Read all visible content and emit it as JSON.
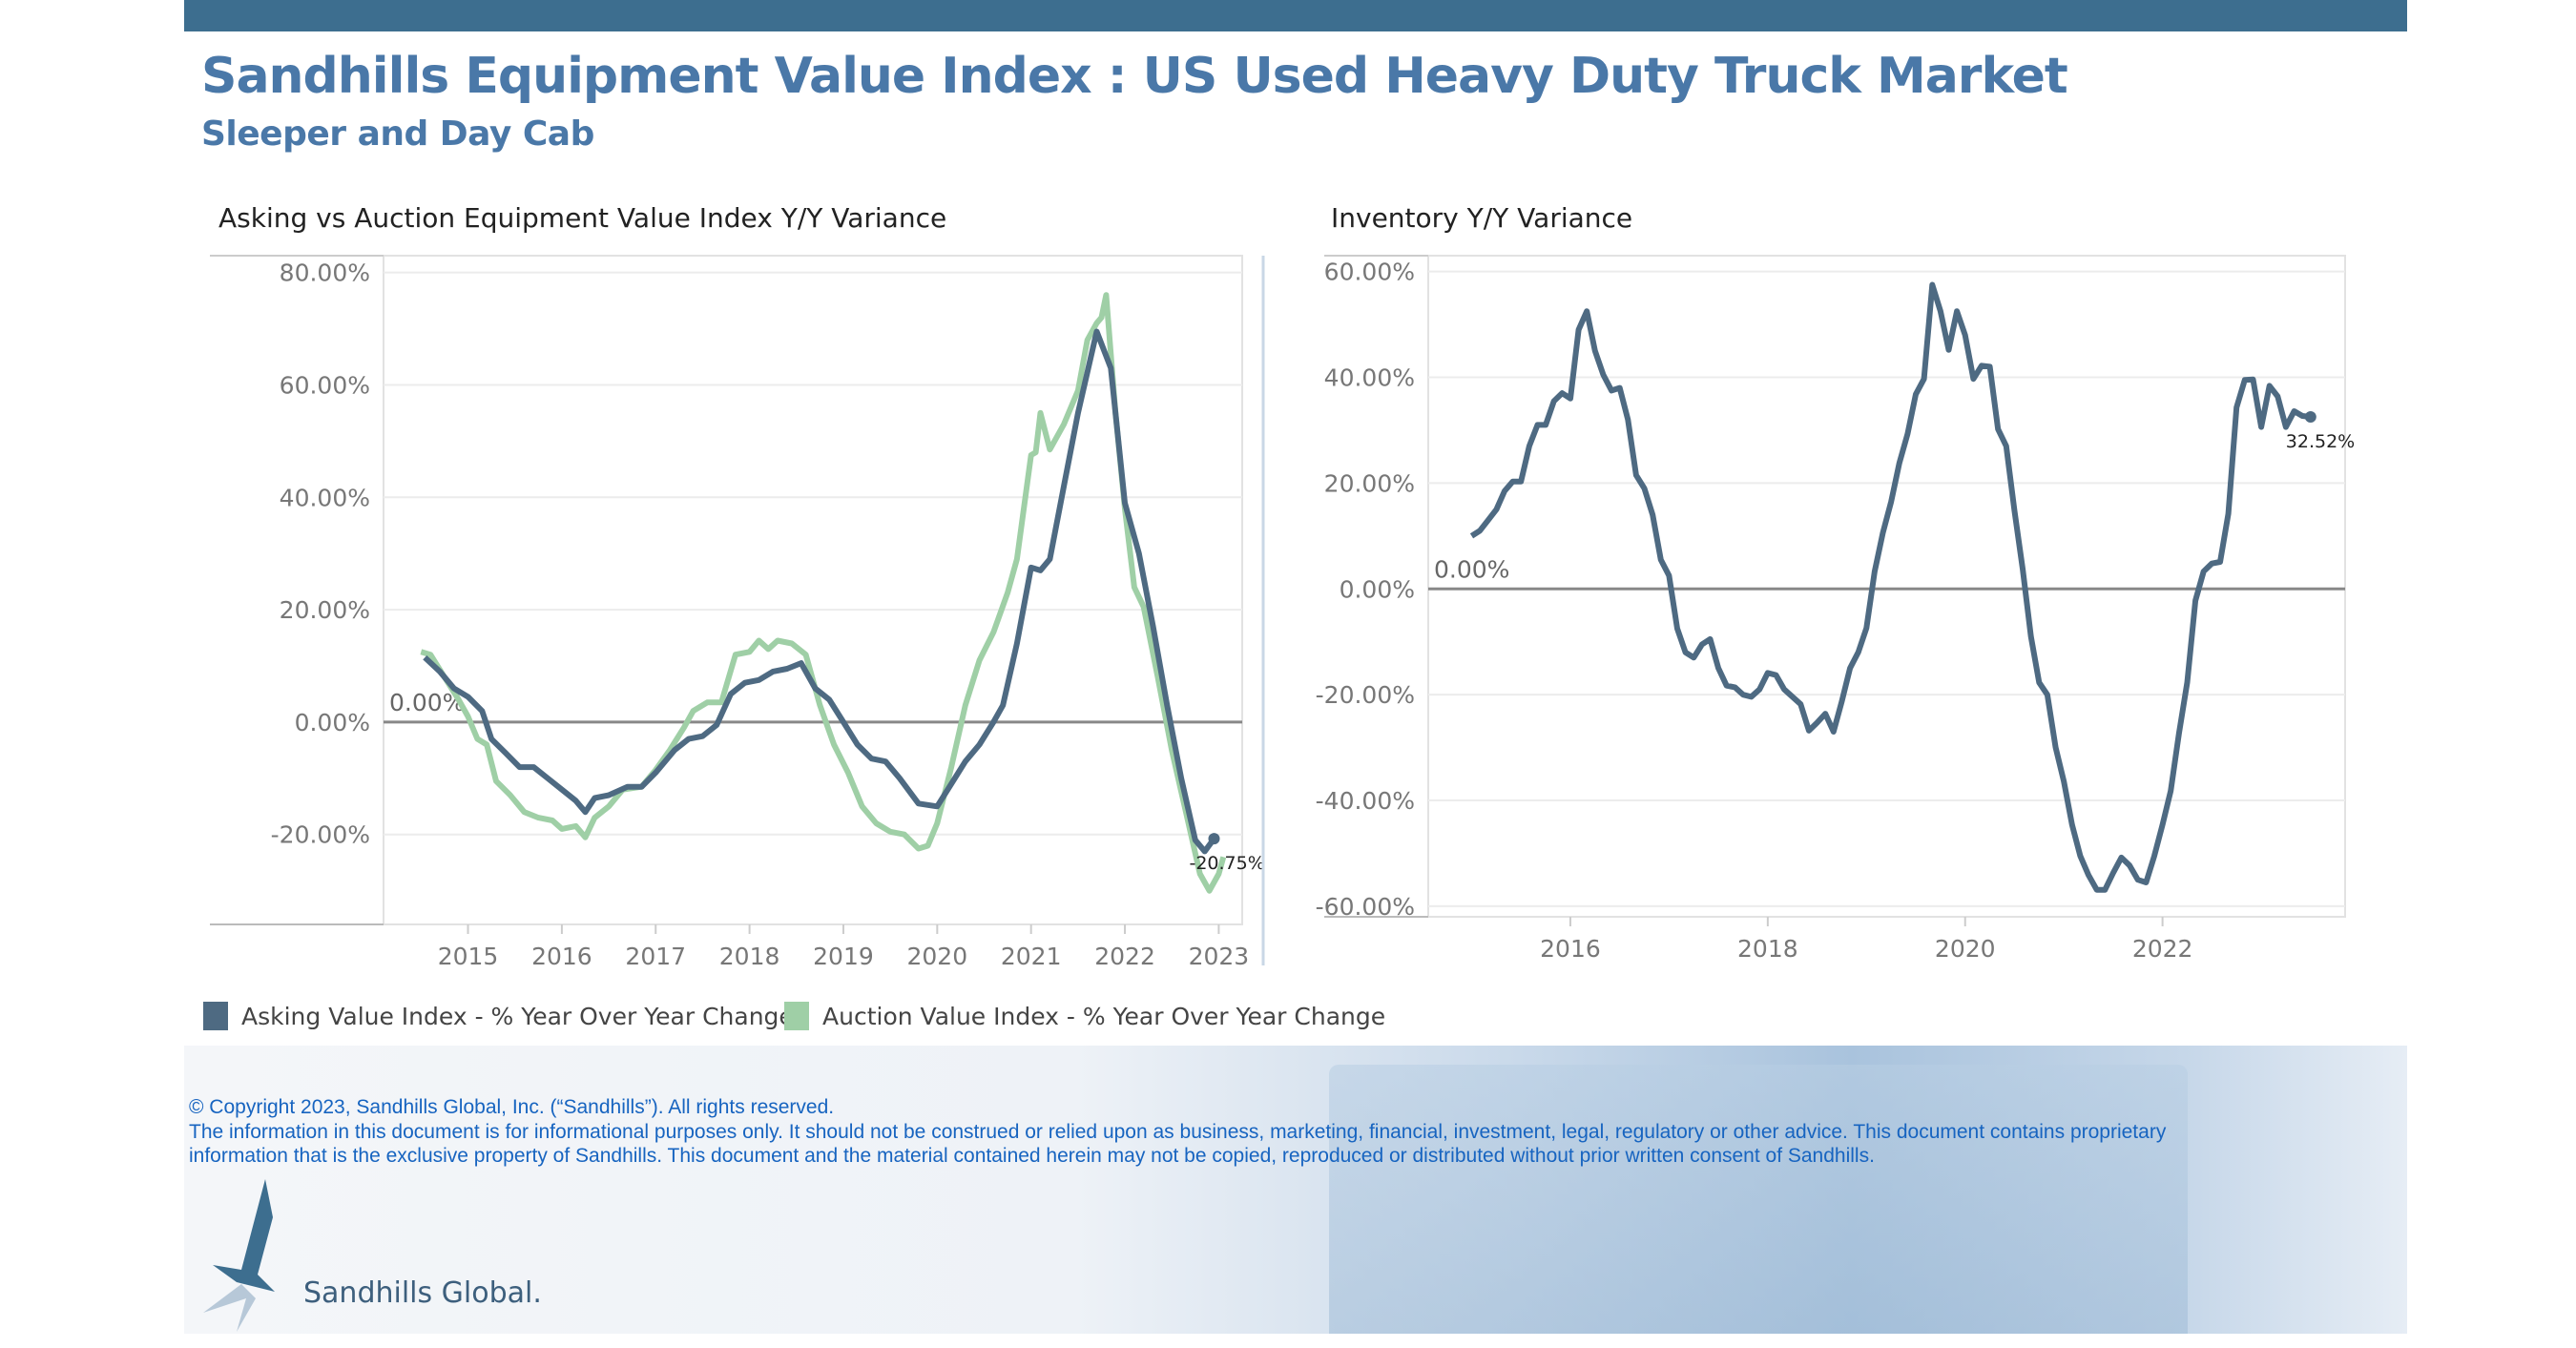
{
  "header": {
    "title": "Sandhills Equipment Value Index : US Used Heavy Duty Truck Market",
    "subtitle": "Sleeper and Day Cab"
  },
  "colors": {
    "bar": "#3d6e8f",
    "title": "#4a78a8",
    "asking": "#4e6a82",
    "auction": "#9fcfa6",
    "inventory": "#4e6a82"
  },
  "chart_data": [
    {
      "type": "line",
      "title": "Asking vs Auction Equipment Value Index Y/Y Variance",
      "xlabel": "",
      "ylabel": "",
      "ylim": [
        -36,
        83
      ],
      "xlim": [
        2014.1,
        2023.25
      ],
      "grid": true,
      "yticks": [
        {
          "v": 80,
          "label": "80.00%"
        },
        {
          "v": 60,
          "label": "60.00%"
        },
        {
          "v": 40,
          "label": "40.00%"
        },
        {
          "v": 20,
          "label": "20.00%"
        },
        {
          "v": 0,
          "label": "0.00%"
        },
        {
          "v": -20,
          "label": "-20.00%"
        }
      ],
      "xticks": [
        {
          "v": 2015,
          "label": "2015"
        },
        {
          "v": 2016,
          "label": "2016"
        },
        {
          "v": 2017,
          "label": "2017"
        },
        {
          "v": 2018,
          "label": "2018"
        },
        {
          "v": 2019,
          "label": "2019"
        },
        {
          "v": 2020,
          "label": "2020"
        },
        {
          "v": 2021,
          "label": "2021"
        },
        {
          "v": 2022,
          "label": "2022"
        },
        {
          "v": 2023,
          "label": "2023"
        }
      ],
      "reference_label": "0.00%",
      "end_label": "-20.75%",
      "series": [
        {
          "name": "Asking Value Index - % Year Over Year Change",
          "points": [
            [
              2014.54,
              11.5
            ],
            [
              2014.7,
              9
            ],
            [
              2014.85,
              6
            ],
            [
              2015.0,
              4.5
            ],
            [
              2015.15,
              2
            ],
            [
              2015.25,
              -3
            ],
            [
              2015.4,
              -5.5
            ],
            [
              2015.55,
              -8
            ],
            [
              2015.7,
              -8
            ],
            [
              2015.85,
              -10
            ],
            [
              2016.0,
              -12
            ],
            [
              2016.15,
              -14
            ],
            [
              2016.25,
              -16
            ],
            [
              2016.35,
              -13.5
            ],
            [
              2016.5,
              -13
            ],
            [
              2016.7,
              -11.5
            ],
            [
              2016.85,
              -11.5
            ],
            [
              2017.0,
              -9
            ],
            [
              2017.2,
              -5
            ],
            [
              2017.35,
              -3
            ],
            [
              2017.5,
              -2.5
            ],
            [
              2017.65,
              -0.5
            ],
            [
              2017.8,
              5
            ],
            [
              2017.95,
              7
            ],
            [
              2018.1,
              7.5
            ],
            [
              2018.25,
              9
            ],
            [
              2018.4,
              9.5
            ],
            [
              2018.55,
              10.5
            ],
            [
              2018.7,
              6
            ],
            [
              2018.85,
              4
            ],
            [
              2019.0,
              0
            ],
            [
              2019.15,
              -4
            ],
            [
              2019.3,
              -6.5
            ],
            [
              2019.45,
              -7
            ],
            [
              2019.6,
              -10
            ],
            [
              2019.8,
              -14.5
            ],
            [
              2020.0,
              -15
            ],
            [
              2020.15,
              -11
            ],
            [
              2020.3,
              -7
            ],
            [
              2020.45,
              -4
            ],
            [
              2020.6,
              0
            ],
            [
              2020.7,
              3
            ],
            [
              2020.85,
              14
            ],
            [
              2021.0,
              27.5
            ],
            [
              2021.1,
              27
            ],
            [
              2021.2,
              29
            ],
            [
              2021.35,
              42
            ],
            [
              2021.5,
              55
            ],
            [
              2021.7,
              69.5
            ],
            [
              2021.85,
              63
            ],
            [
              2022.0,
              39
            ],
            [
              2022.15,
              30
            ],
            [
              2022.3,
              17
            ],
            [
              2022.45,
              3
            ],
            [
              2022.6,
              -10
            ],
            [
              2022.75,
              -21
            ],
            [
              2022.85,
              -23
            ],
            [
              2022.95,
              -20.75
            ]
          ]
        },
        {
          "name": "Auction Value Index - % Year Over Year Change",
          "points": [
            [
              2014.5,
              12.5
            ],
            [
              2014.6,
              12
            ],
            [
              2014.75,
              8
            ],
            [
              2014.9,
              4
            ],
            [
              2015.0,
              1
            ],
            [
              2015.1,
              -3
            ],
            [
              2015.2,
              -4
            ],
            [
              2015.3,
              -10.5
            ],
            [
              2015.45,
              -13
            ],
            [
              2015.6,
              -16
            ],
            [
              2015.75,
              -17
            ],
            [
              2015.9,
              -17.5
            ],
            [
              2016.0,
              -19
            ],
            [
              2016.15,
              -18.5
            ],
            [
              2016.25,
              -20.5
            ],
            [
              2016.35,
              -17
            ],
            [
              2016.5,
              -15
            ],
            [
              2016.65,
              -12
            ],
            [
              2016.85,
              -11.5
            ],
            [
              2017.0,
              -8.5
            ],
            [
              2017.15,
              -5
            ],
            [
              2017.3,
              -1
            ],
            [
              2017.4,
              2
            ],
            [
              2017.55,
              3.5
            ],
            [
              2017.7,
              3.5
            ],
            [
              2017.85,
              12
            ],
            [
              2018.0,
              12.5
            ],
            [
              2018.1,
              14.5
            ],
            [
              2018.2,
              13
            ],
            [
              2018.3,
              14.5
            ],
            [
              2018.45,
              14
            ],
            [
              2018.6,
              12
            ],
            [
              2018.75,
              3
            ],
            [
              2018.9,
              -4
            ],
            [
              2019.05,
              -9
            ],
            [
              2019.2,
              -15
            ],
            [
              2019.35,
              -18
            ],
            [
              2019.5,
              -19.5
            ],
            [
              2019.65,
              -20
            ],
            [
              2019.8,
              -22.5
            ],
            [
              2019.9,
              -22
            ],
            [
              2020.0,
              -18
            ],
            [
              2020.15,
              -8
            ],
            [
              2020.3,
              3
            ],
            [
              2020.45,
              11
            ],
            [
              2020.6,
              16
            ],
            [
              2020.75,
              23
            ],
            [
              2020.85,
              29
            ],
            [
              2021.0,
              47.5
            ],
            [
              2021.05,
              48
            ],
            [
              2021.1,
              55
            ],
            [
              2021.2,
              48.5
            ],
            [
              2021.35,
              53
            ],
            [
              2021.5,
              59
            ],
            [
              2021.6,
              68
            ],
            [
              2021.7,
              71
            ],
            [
              2021.75,
              72
            ],
            [
              2021.8,
              76
            ],
            [
              2021.9,
              55
            ],
            [
              2022.0,
              38
            ],
            [
              2022.1,
              24
            ],
            [
              2022.2,
              20.5
            ],
            [
              2022.35,
              8
            ],
            [
              2022.5,
              -5
            ],
            [
              2022.65,
              -16
            ],
            [
              2022.8,
              -27
            ],
            [
              2022.9,
              -30
            ],
            [
              2023.0,
              -27
            ],
            [
              2023.05,
              -24
            ]
          ]
        }
      ]
    },
    {
      "type": "line",
      "title": "Inventory Y/Y Variance",
      "xlabel": "",
      "ylabel": "",
      "ylim": [
        -62,
        63
      ],
      "xlim": [
        2014.56,
        2023.85
      ],
      "grid": true,
      "yticks": [
        {
          "v": 60,
          "label": "60.00%"
        },
        {
          "v": 40,
          "label": "40.00%"
        },
        {
          "v": 20,
          "label": "20.00%"
        },
        {
          "v": 0,
          "label": "0.00%"
        },
        {
          "v": -20,
          "label": "-20.00%"
        },
        {
          "v": -40,
          "label": "-40.00%"
        },
        {
          "v": -60,
          "label": "-60.00%"
        }
      ],
      "xticks": [
        {
          "v": 2016,
          "label": "2016"
        },
        {
          "v": 2018,
          "label": "2018"
        },
        {
          "v": 2020,
          "label": "2020"
        },
        {
          "v": 2022,
          "label": "2022"
        }
      ],
      "reference_label": "0.00%",
      "end_label": "32.52%",
      "series": [
        {
          "name": "Inventory Y/Y Variance",
          "x_start": 2015.0,
          "x_step_months": 1,
          "values": [
            10,
            11,
            13,
            15,
            18.5,
            20.3,
            20.3,
            27,
            31,
            31,
            35.5,
            37,
            36,
            49,
            52.5,
            45,
            40.5,
            37.5,
            38,
            32,
            21.5,
            19,
            14,
            5.5,
            2.5,
            -7.5,
            -12,
            -13,
            -10.5,
            -9.5,
            -15,
            -18.3,
            -18.6,
            -20,
            -20.4,
            -19,
            -15.9,
            -16.3,
            -19,
            -20.4,
            -21.8,
            -26.8,
            -25.3,
            -23.6,
            -27,
            -21.3,
            -15,
            -12,
            -7.4,
            3.3,
            10.6,
            16.5,
            23.8,
            29.3,
            36.8,
            39.7,
            57.5,
            52.5,
            45.2,
            52.5,
            48,
            39.7,
            42.2,
            42,
            30.2,
            27,
            14.7,
            3.7,
            -9,
            -17.7,
            -20,
            -30,
            -36.4,
            -44.6,
            -50.5,
            -54.1,
            -56.9,
            -56.9,
            -53.7,
            -50.8,
            -52.3,
            -55,
            -55.5,
            -50.5,
            -44.6,
            -38.2,
            -27.3,
            -17.7,
            -2.2,
            3.3,
            4.8,
            5.1,
            14.2,
            34.3,
            39.5,
            39.6,
            30.6,
            38.4,
            36.4,
            30.6,
            33.6,
            32.7,
            32.52
          ]
        }
      ]
    }
  ],
  "legend": {
    "asking": "Asking Value Index - % Year Over Year Change",
    "auction": "Auction Value Index - % Year Over Year Change"
  },
  "footer": {
    "copyright": "© Copyright 2023, Sandhills Global, Inc. (“Sandhills”). All rights reserved.",
    "disclaimer_1": "The information in this document is for informational purposes only.  It should not be construed or relied upon as business, marketing, financial, investment, legal, regulatory or other advice. This document contains proprietary",
    "disclaimer_2": "information that is the exclusive property of Sandhills. This document and the material contained herein may not be copied, reproduced or distributed without prior written consent of Sandhills.",
    "logo": "Sandhills Global."
  }
}
